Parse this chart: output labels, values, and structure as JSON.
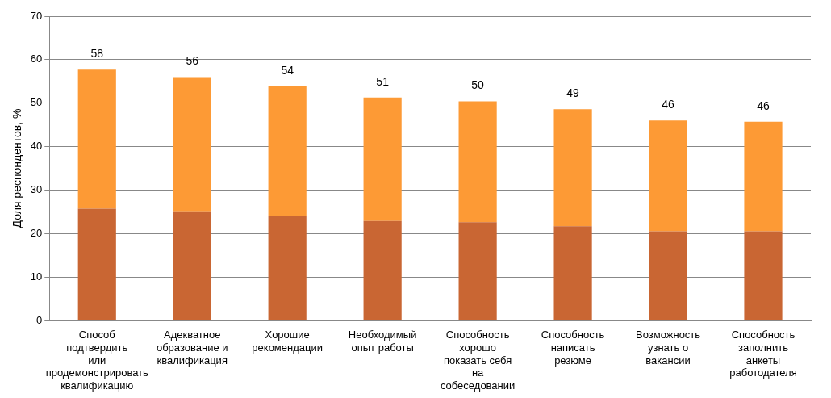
{
  "chart_data": {
    "type": "bar",
    "stacked": true,
    "ylabel": "Доля респондентов, %",
    "categories": [
      "Способ подтвердить или продемонстрировать квалификацию",
      "Адекватное образование и квалификация",
      "Хорошие рекомендации",
      "Необходимый опыт работы",
      "Способность хорошо показать себя на собеседовании",
      "Способность написать резюме",
      "Возможность узнать о вакансии",
      "Способность заполнить анкеты работодателя"
    ],
    "series": [
      {
        "color": "#c96633",
        "values": [
          25.7,
          25.1,
          24,
          22.9,
          22.6,
          21.7,
          20.5,
          20.5
        ]
      },
      {
        "color": "#fd9a35",
        "values": [
          32,
          30.9,
          29.9,
          28.4,
          27.8,
          26.9,
          25.5,
          25.2
        ]
      }
    ],
    "totals": [
      "58",
      "56",
      "54",
      "51",
      "50",
      "49",
      "46",
      "46"
    ],
    "ylim": [
      0,
      70
    ],
    "yticks": [
      0,
      10,
      20,
      30,
      40,
      50,
      60,
      70
    ],
    "grid": "y",
    "legend": false
  }
}
